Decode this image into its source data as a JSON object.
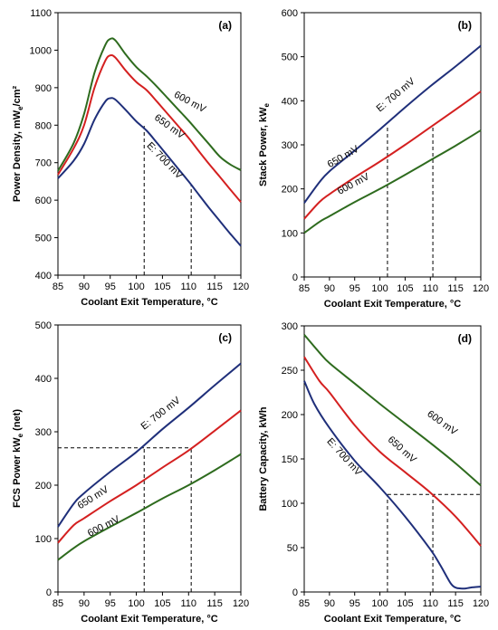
{
  "chart_data": [
    {
      "type": "line",
      "panel_label": "(a)",
      "xlabel": "Coolant Exit Temperature, °C",
      "ylabel": "Power Density, mW",
      "ylabel_sub": "e",
      "ylabel_tail": "/cm²",
      "xlim": [
        85,
        120
      ],
      "ylim": [
        400,
        1100
      ],
      "xticks": [
        85,
        90,
        95,
        100,
        105,
        110,
        115,
        120
      ],
      "yticks": [
        400,
        500,
        600,
        700,
        800,
        900,
        1000,
        1100
      ],
      "series": [
        {
          "name": "E: 700 mV",
          "color": "#1f2f7a",
          "x": [
            85,
            88,
            90,
            92,
            94,
            95,
            96,
            98,
            100,
            102,
            104,
            106,
            108,
            110,
            112,
            114,
            116,
            118,
            120
          ],
          "y": [
            658,
            705,
            750,
            815,
            862,
            872,
            868,
            840,
            810,
            785,
            752,
            718,
            684,
            650,
            614,
            578,
            544,
            510,
            478
          ]
        },
        {
          "name": "650 mV",
          "color": "#d42020",
          "x": [
            85,
            88,
            90,
            92,
            94,
            95,
            96,
            98,
            100,
            102,
            104,
            106,
            108,
            110,
            112,
            114,
            116,
            118,
            120
          ],
          "y": [
            668,
            738,
            800,
            900,
            970,
            986,
            980,
            945,
            915,
            893,
            862,
            830,
            798,
            766,
            730,
            695,
            662,
            628,
            595
          ]
        },
        {
          "name": "600 mV",
          "color": "#2e6b1e",
          "x": [
            85,
            88,
            90,
            92,
            94,
            95,
            96,
            98,
            100,
            102,
            104,
            106,
            108,
            110,
            112,
            114,
            116,
            118,
            120
          ],
          "y": [
            678,
            752,
            830,
            940,
            1012,
            1030,
            1026,
            988,
            955,
            930,
            902,
            872,
            842,
            812,
            780,
            748,
            716,
            695,
            680
          ]
        }
      ],
      "guides": [
        {
          "x": 101.5,
          "y_from": 400,
          "y_to": 805
        },
        {
          "x": 110.5,
          "y_from": 400,
          "y_to": 640
        }
      ],
      "series_labels": [
        {
          "text": "600 mV",
          "x": 110,
          "y": 855,
          "angle": 28
        },
        {
          "text": "650 mV",
          "x": 106,
          "y": 790,
          "angle": 36
        },
        {
          "text": "E: 700 mV",
          "x": 105,
          "y": 700,
          "angle": 46
        }
      ]
    },
    {
      "type": "line",
      "panel_label": "(b)",
      "xlabel": "Coolant Exit Temperature, °C",
      "ylabel": "Stack Power, kW",
      "ylabel_sub": "e",
      "ylabel_tail": "",
      "xlim": [
        85,
        120
      ],
      "ylim": [
        0,
        600
      ],
      "xticks": [
        85,
        90,
        95,
        100,
        105,
        110,
        115,
        120
      ],
      "yticks": [
        0,
        100,
        200,
        300,
        400,
        500,
        600
      ],
      "series": [
        {
          "name": "E: 700 mV",
          "color": "#1f2f7a",
          "x": [
            85,
            88,
            90,
            95,
            100,
            105,
            110,
            115,
            120
          ],
          "y": [
            168,
            215,
            240,
            287,
            335,
            385,
            433,
            478,
            525
          ]
        },
        {
          "name": "650 mV",
          "color": "#d42020",
          "x": [
            85,
            88,
            90,
            95,
            100,
            105,
            110,
            115,
            120
          ],
          "y": [
            132,
            170,
            188,
            226,
            262,
            300,
            340,
            380,
            421
          ]
        },
        {
          "name": "600 mV",
          "color": "#2e6b1e",
          "x": [
            85,
            88,
            90,
            95,
            100,
            105,
            110,
            115,
            120
          ],
          "y": [
            100,
            125,
            138,
            170,
            200,
            232,
            265,
            298,
            333
          ]
        }
      ],
      "guides": [
        {
          "x": 101.5,
          "y_from": 0,
          "y_to": 345
        },
        {
          "x": 110.5,
          "y_from": 0,
          "y_to": 345
        }
      ],
      "series_labels": [
        {
          "text": "E: 700 mV",
          "x": 103.5,
          "y": 408,
          "angle": -40
        },
        {
          "text": "650 mV",
          "x": 93,
          "y": 267,
          "angle": -30
        },
        {
          "text": "600 mV",
          "x": 95,
          "y": 205,
          "angle": -28
        }
      ]
    },
    {
      "type": "line",
      "panel_label": "(c)",
      "xlabel": "Coolant Exit Temperature, °C",
      "ylabel": "FCS Power kW",
      "ylabel_sub": "e",
      "ylabel_tail": " (net)",
      "xlim": [
        85,
        120
      ],
      "ylim": [
        0,
        500
      ],
      "xticks": [
        85,
        90,
        95,
        100,
        105,
        110,
        115,
        120
      ],
      "yticks": [
        0,
        100,
        200,
        300,
        400,
        500
      ],
      "series": [
        {
          "name": "E: 700 mV",
          "color": "#1f2f7a",
          "x": [
            85,
            88,
            90,
            95,
            100,
            105,
            110,
            115,
            120
          ],
          "y": [
            122,
            165,
            185,
            225,
            262,
            305,
            345,
            387,
            428
          ]
        },
        {
          "name": "650 mV",
          "color": "#d42020",
          "x": [
            85,
            88,
            90,
            95,
            100,
            105,
            110,
            115,
            120
          ],
          "y": [
            92,
            125,
            138,
            170,
            200,
            233,
            265,
            302,
            340
          ]
        },
        {
          "name": "600 mV",
          "color": "#2e6b1e",
          "x": [
            85,
            88,
            90,
            95,
            100,
            105,
            110,
            115,
            120
          ],
          "y": [
            60,
            82,
            95,
            122,
            148,
            175,
            200,
            228,
            258
          ]
        }
      ],
      "guides": [
        {
          "x": 101.5,
          "y_from": 0,
          "y_to": 270
        },
        {
          "x": 110.5,
          "y_from": 0,
          "y_to": 270
        },
        {
          "y": 270,
          "x_from": 85,
          "x_to": 110.5
        }
      ],
      "series_labels": [
        {
          "text": "E: 700 mV",
          "x": 105,
          "y": 330,
          "angle": -38
        },
        {
          "text": "650 mV",
          "x": 92,
          "y": 172,
          "angle": -32
        },
        {
          "text": "600 mV",
          "x": 94,
          "y": 118,
          "angle": -27
        }
      ]
    },
    {
      "type": "line",
      "panel_label": "(d)",
      "xlabel": "Coolant Exit Temperature, °C",
      "ylabel": "Battery Capacity, kWh",
      "ylabel_sub": "",
      "ylabel_tail": "",
      "xlim": [
        85,
        120
      ],
      "ylim": [
        0,
        300
      ],
      "xticks": [
        85,
        90,
        95,
        100,
        105,
        110,
        115,
        120
      ],
      "yticks": [
        0,
        50,
        100,
        150,
        200,
        250,
        300
      ],
      "series": [
        {
          "name": "E: 700 mV",
          "color": "#1f2f7a",
          "x": [
            85,
            87,
            90,
            95,
            100,
            105,
            110,
            112,
            114,
            115,
            116,
            117,
            118,
            120
          ],
          "y": [
            238,
            212,
            185,
            148,
            118,
            85,
            48,
            30,
            10,
            5,
            4,
            4,
            5,
            6
          ]
        },
        {
          "name": "650 mV",
          "color": "#d42020",
          "x": [
            85,
            88,
            90,
            95,
            100,
            105,
            110,
            115,
            120
          ],
          "y": [
            265,
            238,
            225,
            188,
            158,
            135,
            112,
            85,
            52
          ]
        },
        {
          "name": "600 mV",
          "color": "#2e6b1e",
          "x": [
            85,
            88,
            90,
            95,
            100,
            105,
            110,
            115,
            120
          ],
          "y": [
            290,
            270,
            258,
            235,
            212,
            190,
            168,
            145,
            120
          ]
        }
      ],
      "guides": [
        {
          "x": 101.5,
          "y_from": 0,
          "y_to": 110
        },
        {
          "x": 110.5,
          "y_from": 0,
          "y_to": 110
        },
        {
          "y": 110,
          "x_from": 101.5,
          "x_to": 120
        }
      ],
      "series_labels": [
        {
          "text": "E: 700 mV",
          "x": 92.5,
          "y": 150,
          "angle": 48
        },
        {
          "text": "650 mV",
          "x": 104,
          "y": 158,
          "angle": 42
        },
        {
          "text": "600 mV",
          "x": 112,
          "y": 188,
          "angle": 36
        }
      ]
    }
  ]
}
